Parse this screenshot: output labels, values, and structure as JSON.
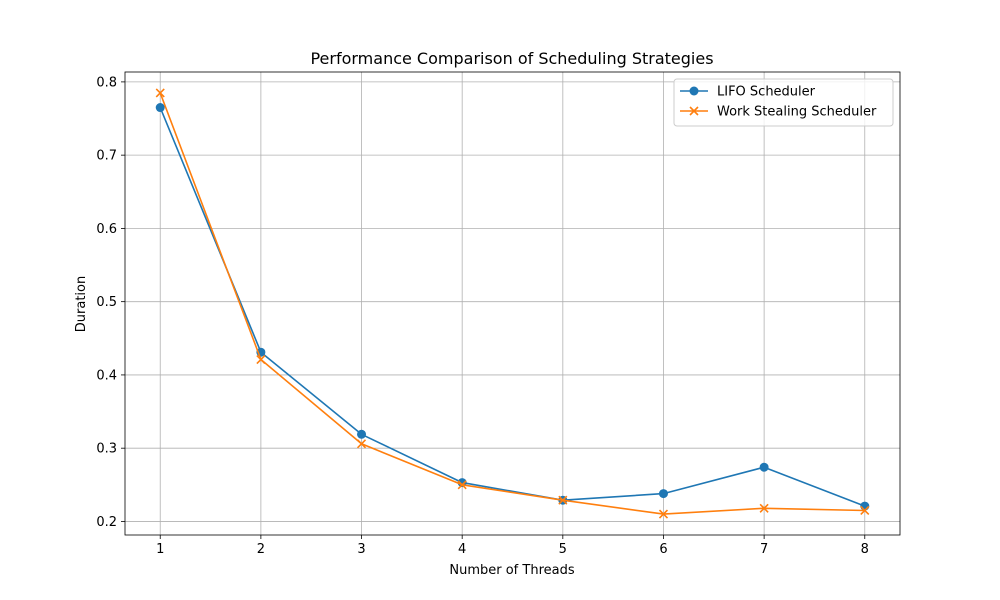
{
  "chart_data": {
    "type": "line",
    "title": "Performance Comparison of Scheduling Strategies",
    "xlabel": "Number of Threads",
    "ylabel": "Duration",
    "x": [
      1,
      2,
      3,
      4,
      5,
      6,
      7,
      8
    ],
    "xticks": [
      "1",
      "2",
      "3",
      "4",
      "5",
      "6",
      "7",
      "8"
    ],
    "yticks": [
      "0.2",
      "0.3",
      "0.4",
      "0.5",
      "0.6",
      "0.7",
      "0.8"
    ],
    "xlim": [
      0.65,
      8.35
    ],
    "ylim": [
      0.1815,
      0.8135
    ],
    "grid": true,
    "legend_position": "top-right",
    "series": [
      {
        "name": "LIFO Scheduler",
        "color": "#1f77b4",
        "marker": "circle",
        "values": [
          0.765,
          0.431,
          0.319,
          0.253,
          0.229,
          0.238,
          0.274,
          0.221
        ]
      },
      {
        "name": "Work Stealing Scheduler",
        "color": "#ff7f0e",
        "marker": "x",
        "values": [
          0.785,
          0.421,
          0.306,
          0.25,
          0.229,
          0.21,
          0.218,
          0.215
        ]
      }
    ]
  }
}
